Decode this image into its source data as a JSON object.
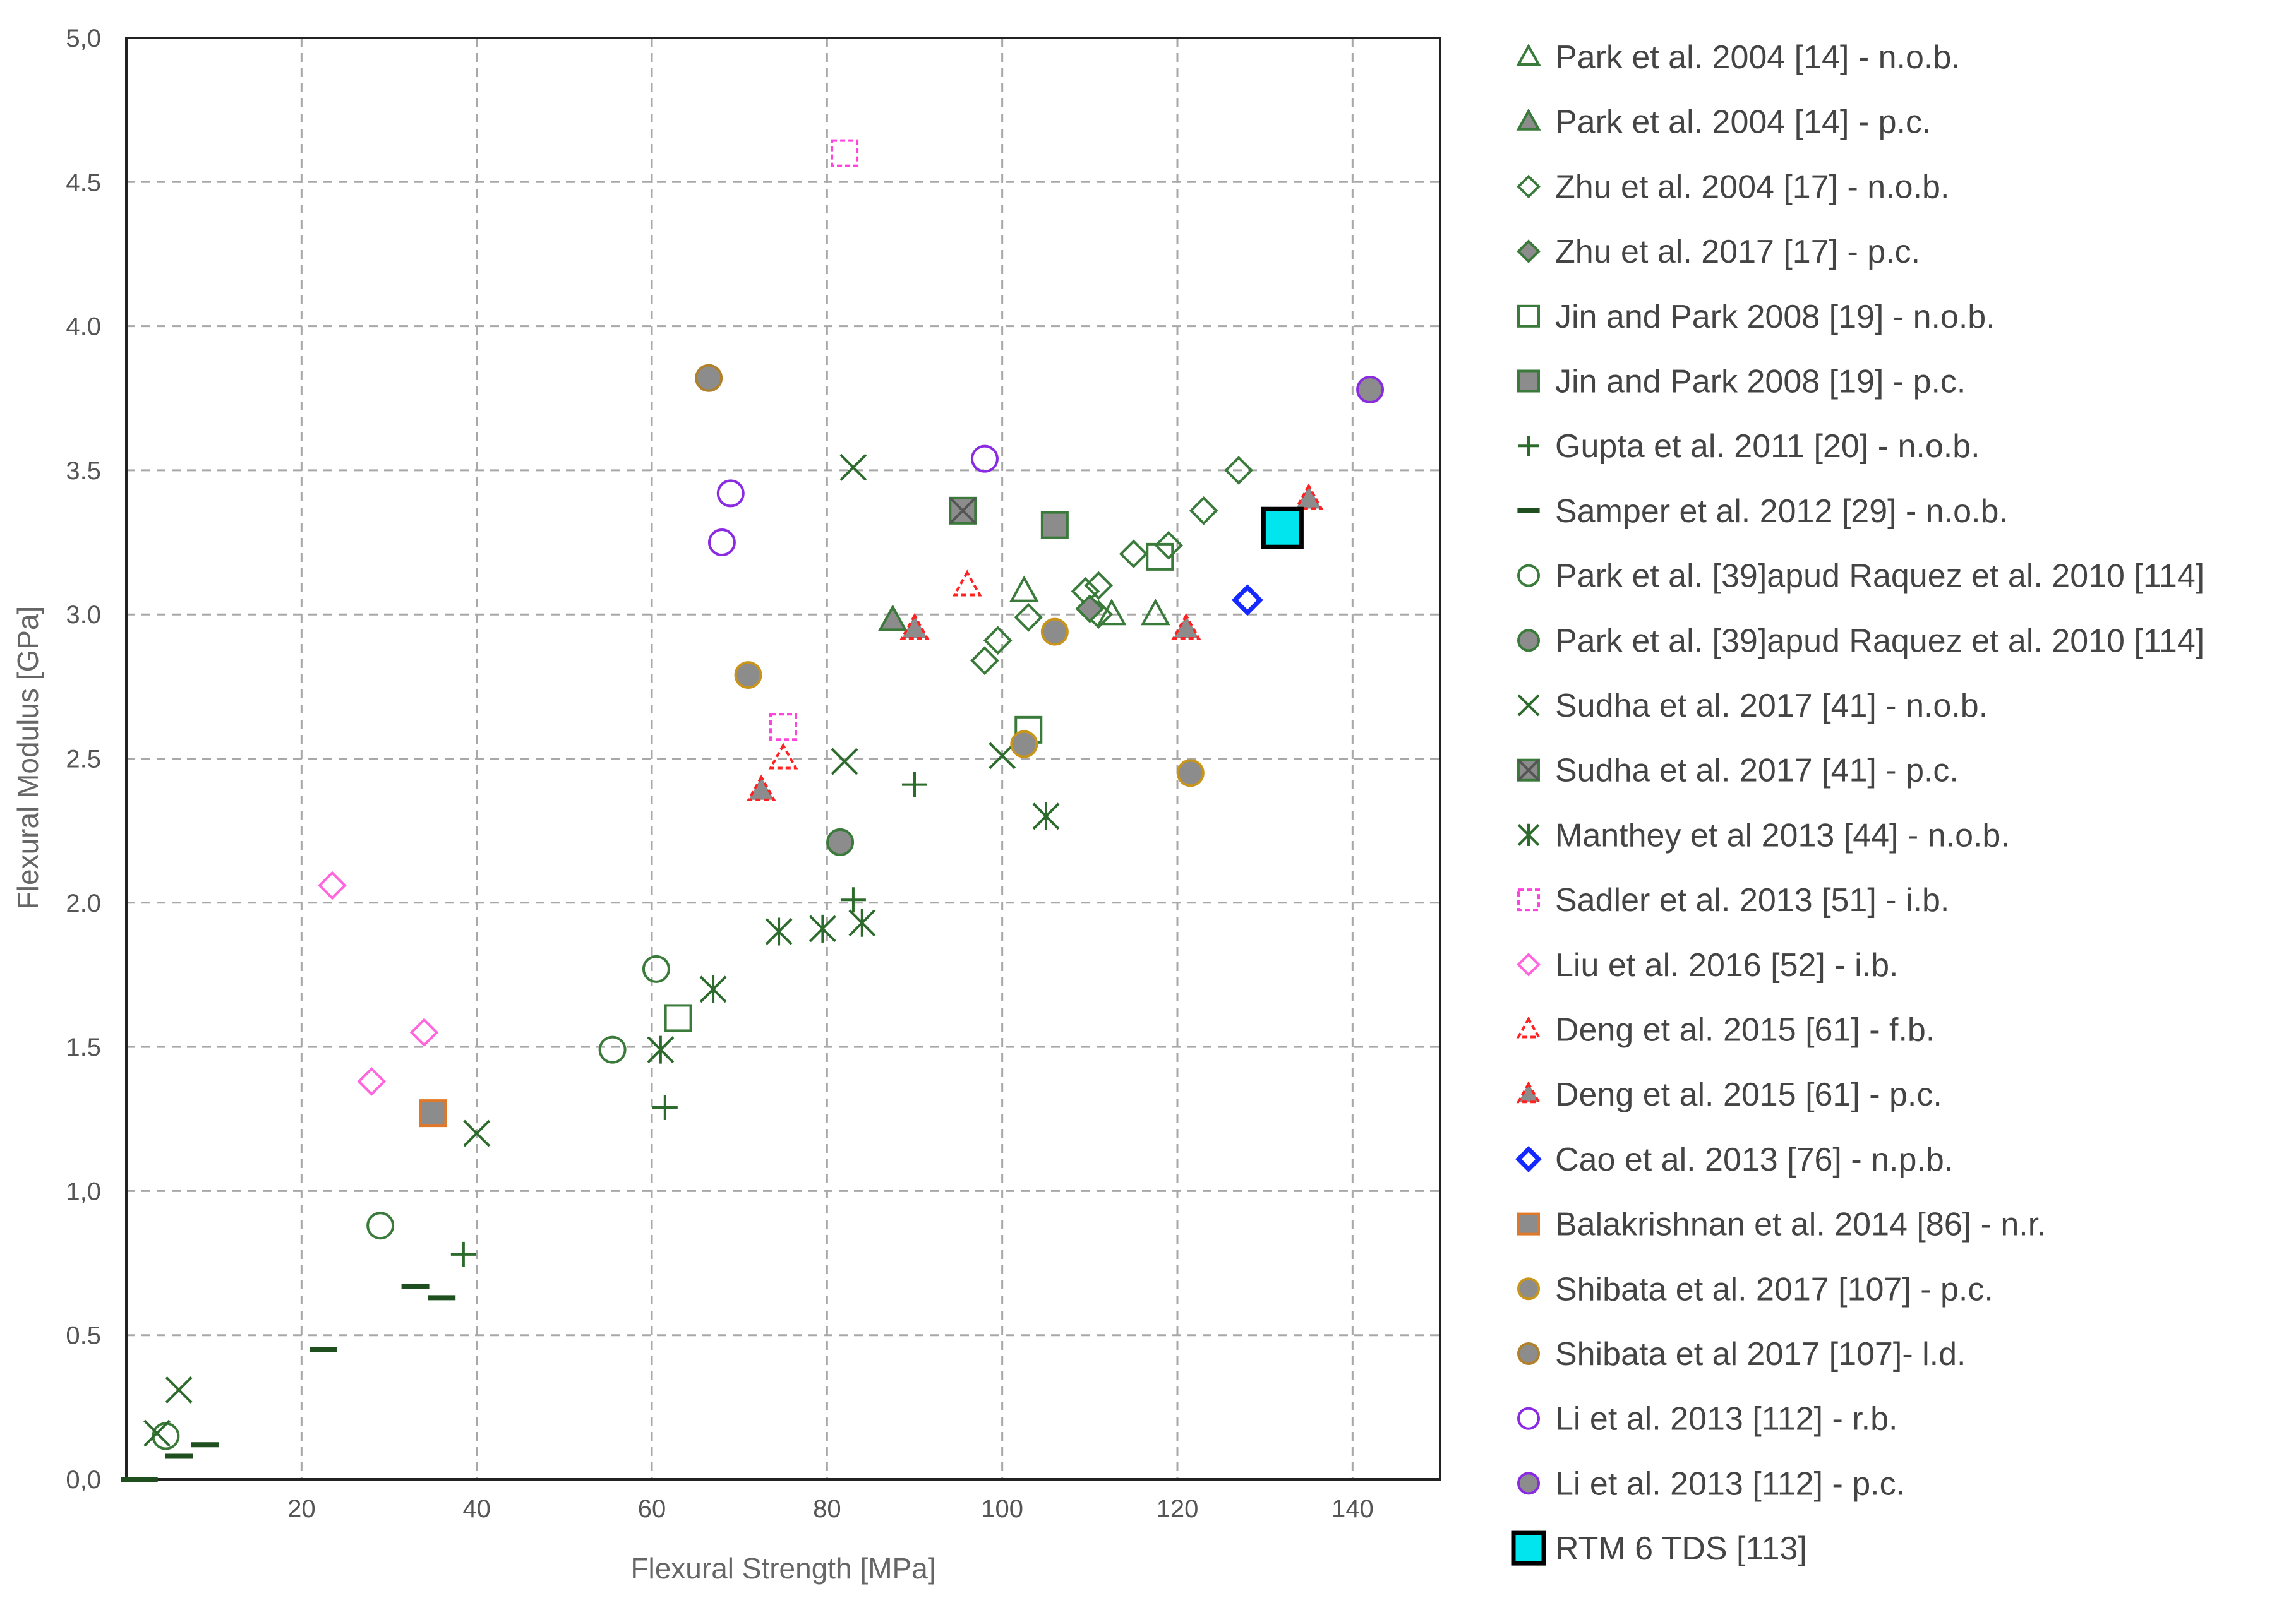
{
  "chart_data": {
    "type": "scatter",
    "title": "",
    "xlabel": "Flexural Strength [MPa]",
    "ylabel": "Flexural Modulus [GPa]",
    "xlim": [
      0,
      150
    ],
    "ylim": [
      0,
      5
    ],
    "x_ticks": [
      "20",
      "40",
      "60",
      "80",
      "100",
      "120",
      "140"
    ],
    "y_ticks": [
      "0,0",
      "0.5",
      "1,0",
      "1.5",
      "2.0",
      "2.5",
      "3.0",
      "3.5",
      "4.0",
      "4.5",
      "5,0"
    ],
    "grid": true,
    "legend_position": "right",
    "series": [
      {
        "name": "Park et al. 2004 [14] - n.o.b.",
        "marker": "triangle",
        "stroke": "#3a7a3a",
        "fill": "none",
        "points": [
          [
            102.5,
            3.08
          ],
          [
            112.5,
            3.0
          ],
          [
            117.5,
            3.0
          ]
        ]
      },
      {
        "name": "Park et al. 2004 [14] - p.c.",
        "marker": "triangle",
        "stroke": "#3a7a3a",
        "fill": "#8c8c8c",
        "points": [
          [
            87.5,
            2.98
          ]
        ]
      },
      {
        "name": "Zhu et al. 2004 [17] - n.o.b.",
        "marker": "diamond",
        "stroke": "#3a7a3a",
        "fill": "none",
        "points": [
          [
            98,
            2.84
          ],
          [
            99.5,
            2.91
          ],
          [
            103,
            2.99
          ],
          [
            109.5,
            3.08
          ],
          [
            111,
            3.1
          ],
          [
            111,
            3.0
          ],
          [
            115,
            3.21
          ],
          [
            119,
            3.24
          ],
          [
            123,
            3.36
          ],
          [
            127,
            3.5
          ]
        ]
      },
      {
        "name": "Zhu et al. 2017 [17] - p.c.",
        "marker": "diamond",
        "stroke": "#3a7a3a",
        "fill": "#8c8c8c",
        "points": [
          [
            110,
            3.02
          ]
        ]
      },
      {
        "name": "Jin and Park 2008 [19] - n.o.b.",
        "marker": "square",
        "stroke": "#3a7a3a",
        "fill": "none",
        "points": [
          [
            63,
            1.6
          ],
          [
            103,
            2.6
          ],
          [
            118,
            3.2
          ]
        ]
      },
      {
        "name": "Jin and Park 2008 [19] - p.c.",
        "marker": "square",
        "stroke": "#3a7a3a",
        "fill": "#8c8c8c",
        "points": [
          [
            106,
            3.31
          ]
        ]
      },
      {
        "name": "Gupta et al. 2011 [20] - n.o.b.",
        "marker": "plus",
        "stroke": "#2d6b2d",
        "fill": "none",
        "points": [
          [
            38.5,
            0.78
          ],
          [
            61.5,
            1.29
          ],
          [
            83,
            2.01
          ],
          [
            90,
            2.41
          ]
        ]
      },
      {
        "name": "Samper et al. 2012 [29] - n.o.b.",
        "marker": "dash",
        "stroke": "#1f4f1f",
        "fill": "none",
        "points": [
          [
            1,
            0.0
          ],
          [
            6,
            0.08
          ],
          [
            9,
            0.12
          ],
          [
            2,
            0.0
          ],
          [
            22.5,
            0.45
          ],
          [
            33,
            0.67
          ],
          [
            36,
            0.63
          ]
        ]
      },
      {
        "name": "Park et al. [39]apud Raquez et al. 2010 [114]",
        "marker": "circle",
        "stroke": "#3a7a3a",
        "fill": "none",
        "points": [
          [
            4.5,
            0.15
          ],
          [
            29,
            0.88
          ],
          [
            55.5,
            1.49
          ],
          [
            60.5,
            1.77
          ]
        ]
      },
      {
        "name": "Park et al. [39]apud Raquez et al. 2010 [114]",
        "marker": "circle",
        "stroke": "#3a7a3a",
        "fill": "#8c8c8c",
        "points": [
          [
            81.5,
            2.21
          ]
        ]
      },
      {
        "name": "Sudha et al. 2017 [41] - n.o.b.",
        "marker": "x",
        "stroke": "#2d6b2d",
        "fill": "none",
        "points": [
          [
            3.5,
            0.16
          ],
          [
            6,
            0.31
          ],
          [
            40,
            1.2
          ],
          [
            82,
            2.49
          ],
          [
            83,
            3.51
          ],
          [
            100,
            2.51
          ]
        ]
      },
      {
        "name": "Sudha et al. 2017 [41] - p.c.",
        "marker": "xbox",
        "stroke": "#3a7a3a",
        "fill": "#8c8c8c",
        "points": [
          [
            95.5,
            3.36
          ]
        ]
      },
      {
        "name": "Manthey et al 2013 [44] - n.o.b.",
        "marker": "asterisk",
        "stroke": "#2d6b2d",
        "fill": "none",
        "points": [
          [
            61,
            1.49
          ],
          [
            67,
            1.7
          ],
          [
            74.5,
            1.9
          ],
          [
            79.5,
            1.91
          ],
          [
            84,
            1.93
          ],
          [
            105,
            2.3
          ]
        ]
      },
      {
        "name": "Sadler et al. 2013 [51] - i.b.",
        "marker": "square",
        "stroke": "#ff44dd",
        "fill": "none",
        "dashed": true,
        "points": [
          [
            75,
            2.61
          ],
          [
            82,
            4.6
          ]
        ]
      },
      {
        "name": "Liu et al. 2016 [52] - i.b.",
        "marker": "diamond",
        "stroke": "#ff66dd",
        "fill": "none",
        "points": [
          [
            23.5,
            2.06
          ],
          [
            28,
            1.38
          ],
          [
            34,
            1.55
          ]
        ]
      },
      {
        "name": "Deng et al. 2015 [61] - f.b.",
        "marker": "triangle",
        "stroke": "#ff2222",
        "fill": "none",
        "dashed": true,
        "points": [
          [
            75,
            2.5
          ],
          [
            96,
            3.1
          ]
        ]
      },
      {
        "name": "Deng et al. 2015 [61] - p.c.",
        "marker": "triangle",
        "stroke": "#ff2222",
        "fill": "#8c8c8c",
        "dashed": true,
        "points": [
          [
            72.5,
            2.39
          ],
          [
            90,
            2.95
          ],
          [
            121,
            2.95
          ],
          [
            135,
            3.4
          ]
        ]
      },
      {
        "name": "Cao et al. 2013 [76] - n.p.b.",
        "marker": "diamond",
        "stroke": "#1428ff",
        "fill": "none",
        "bold": true,
        "points": [
          [
            128,
            3.05
          ]
        ]
      },
      {
        "name": "Balakrishnan et al. 2014 [86] - n.r.",
        "marker": "square",
        "stroke": "#e0782a",
        "fill": "#8c8c8c",
        "points": [
          [
            35,
            1.27
          ]
        ]
      },
      {
        "name": "Shibata et al. 2017 [107] - p.c.",
        "marker": "circle",
        "stroke": "#c8951a",
        "fill": "#8c8c8c",
        "points": [
          [
            71,
            2.79
          ],
          [
            102.5,
            2.55
          ],
          [
            106,
            2.94
          ],
          [
            121.5,
            2.45
          ]
        ]
      },
      {
        "name": "Shibata et al 2017 [107]- l.d.",
        "marker": "circle",
        "stroke": "#b0802a",
        "fill": "#8c8c8c",
        "points": [
          [
            66.5,
            3.82
          ]
        ]
      },
      {
        "name": "Li et al. 2013 [112] - r.b.",
        "marker": "circle",
        "stroke": "#8a2be2",
        "fill": "none",
        "points": [
          [
            68,
            3.25
          ],
          [
            69,
            3.42
          ],
          [
            98,
            3.54
          ]
        ]
      },
      {
        "name": "Li et al. 2013 [112] - p.c.",
        "marker": "circle",
        "stroke": "#8a2be2",
        "fill": "#8c8c8c",
        "points": [
          [
            142,
            3.78
          ]
        ]
      },
      {
        "name": "RTM 6 TDS [113]",
        "marker": "bigsquare",
        "stroke": "#000000",
        "fill": "#00e5ee",
        "points": [
          [
            132,
            3.3
          ]
        ]
      }
    ]
  }
}
